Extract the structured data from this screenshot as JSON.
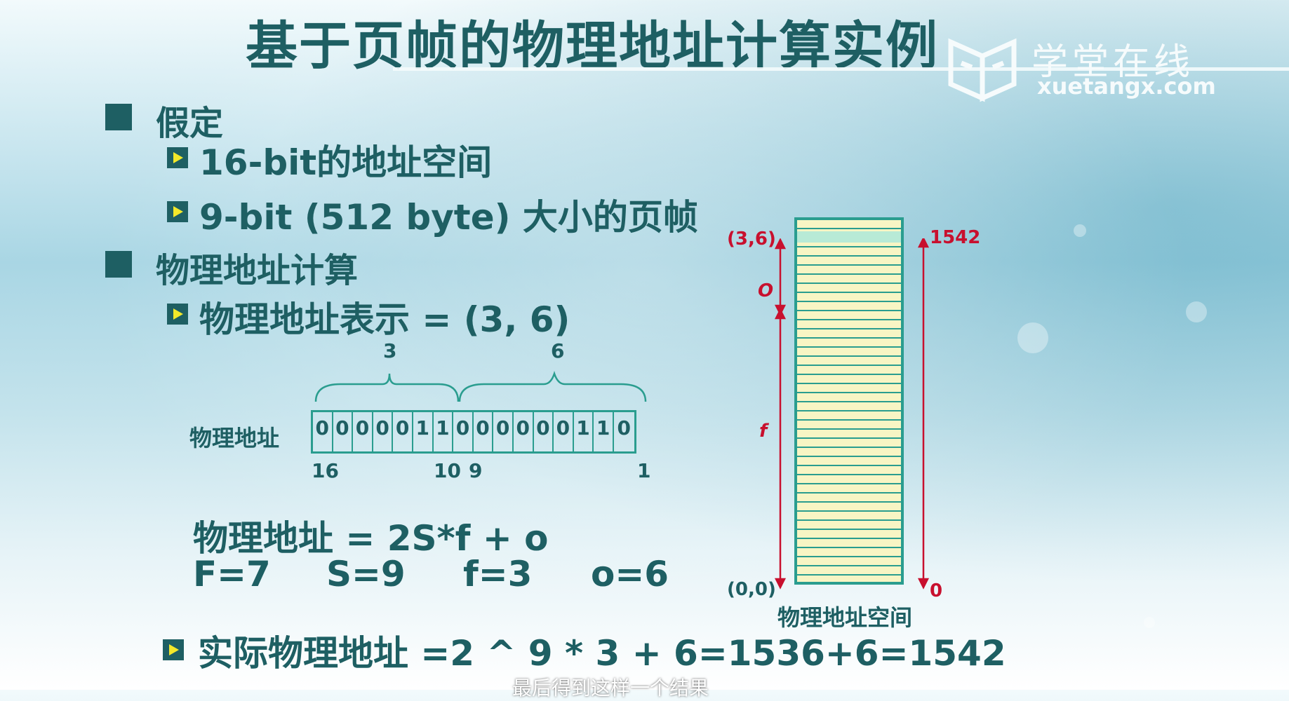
{
  "slide": {
    "title": "基于页帧的物理地址计算实例",
    "logo": {
      "cn": "学堂在线",
      "en": "xuetangx.com"
    },
    "bullets": [
      {
        "text": "假定",
        "subs": [
          "16-bit的地址空间",
          "9-bit (512 byte) 大小的页帧"
        ]
      },
      {
        "text": "物理地址计算",
        "subs": [
          "物理地址表示 =  (3, 6)"
        ]
      }
    ],
    "bit_diagram": {
      "label": "物理地址",
      "group_labels": [
        "3",
        "6"
      ],
      "bits": [
        "0",
        "0",
        "0",
        "0",
        "0",
        "1",
        "1",
        "0",
        "0",
        "0",
        "0",
        "0",
        "0",
        "1",
        "1",
        "0"
      ],
      "positions": [
        "16",
        "10",
        "9",
        "1"
      ]
    },
    "formula_line1": "物理地址 = 2S*f + o",
    "variables": [
      "F=7",
      "S=9",
      "f=3",
      "o=6"
    ],
    "result": "实际物理地址 =2 ^ 9 * 3 + 6=1536+6=1542",
    "memory": {
      "top_left_label": "(3,6)",
      "bottom_left_label": "(0,0)",
      "top_right_label": "1542",
      "bottom_right_label": "0",
      "o_label": "O",
      "f_label": "f",
      "caption": "物理地址空间"
    },
    "subtitle": "最后得到这样一个结果",
    "colors": {
      "accent": "#1e5f63",
      "teal": "#2a9d8f",
      "red": "#c8102e",
      "frame_fill": "#f8f5c4"
    }
  }
}
